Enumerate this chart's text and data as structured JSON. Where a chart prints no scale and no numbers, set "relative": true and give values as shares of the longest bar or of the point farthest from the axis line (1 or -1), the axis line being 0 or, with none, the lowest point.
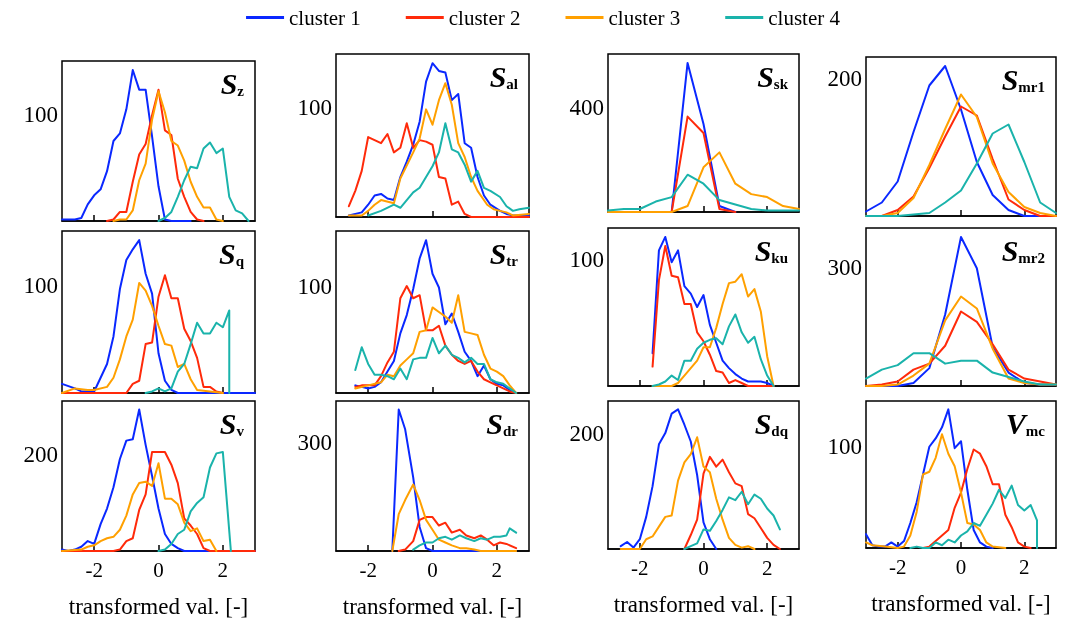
{
  "chart_data": [
    {
      "type": "line",
      "title": "S$_{z}$",
      "relative": true,
      "legend": "top",
      "xlim": [
        -3,
        3
      ],
      "xticks": [
        -2,
        0,
        2
      ],
      "tick_labels": "y",
      "annotations": [
        "100"
      ],
      "series": [
        {
          "name": "cluster 1",
          "color": "#0a28ff",
          "x": [
            -3,
            -2.8,
            -2.6,
            -2.4,
            -2.2,
            -2,
            -1.8,
            -1.6,
            -1.4,
            -1.2,
            -1,
            -0.8,
            -0.6,
            -0.4,
            -0.2,
            0,
            0.2,
            0.4,
            1
          ],
          "values": [
            0.01,
            0.01,
            0.01,
            0.02,
            0.11,
            0.17,
            0.21,
            0.33,
            0.53,
            0.58,
            0.74,
            1,
            0.87,
            0.87,
            0.56,
            0.23,
            0.01,
            0,
            0
          ]
        },
        {
          "name": "cluster 2",
          "color": "#ff2a0a",
          "x": [
            -1.6,
            -1.4,
            -1.2,
            -1,
            -0.8,
            -0.6,
            -0.4,
            -0.2,
            0,
            0.2,
            0.4,
            0.6,
            0.8,
            1,
            1.2,
            1.4
          ],
          "values": [
            0,
            0.01,
            0.06,
            0.06,
            0.26,
            0.44,
            0.51,
            0.7,
            0.87,
            0.6,
            0.57,
            0.28,
            0.16,
            0.06,
            0.01,
            0
          ]
        },
        {
          "name": "cluster 3",
          "color": "#ffa000",
          "x": [
            -1.4,
            -1.2,
            -1,
            -0.8,
            -0.6,
            -0.4,
            -0.2,
            0,
            0.2,
            0.4,
            0.6,
            0.8,
            1,
            1.2,
            1.4,
            1.6,
            1.8,
            2
          ],
          "values": [
            0,
            0.01,
            0.01,
            0.07,
            0.27,
            0.38,
            0.67,
            0.86,
            0.72,
            0.53,
            0.5,
            0.4,
            0.26,
            0.16,
            0.09,
            0.09,
            0.01,
            0
          ]
        },
        {
          "name": "cluster 4",
          "color": "#1ab3ab",
          "x": [
            0,
            0.2,
            0.4,
            0.6,
            0.8,
            1,
            1.2,
            1.4,
            1.6,
            1.8,
            2,
            2.2,
            2.4,
            2.6,
            2.8
          ],
          "values": [
            0,
            0.02,
            0.06,
            0.16,
            0.27,
            0.36,
            0.35,
            0.48,
            0.52,
            0.45,
            0.48,
            0.16,
            0.07,
            0.05,
            0
          ]
        }
      ]
    },
    {
      "type": "line",
      "title": "S$_{al}$",
      "relative": true,
      "xlim": [
        -3,
        3
      ],
      "xticks": [
        -2,
        0,
        2
      ],
      "tick_labels": "y",
      "annotations": [
        "100"
      ],
      "series": [
        {
          "color": "#0a28ff",
          "x": [
            -2.6,
            -2.2,
            -2,
            -1.8,
            -1.6,
            -1.4,
            -1.2,
            -1,
            -0.8,
            -0.6,
            -0.4,
            -0.2,
            0,
            0.2,
            0.4,
            0.6,
            0.8,
            1,
            1.2,
            1.4,
            1.6,
            1.8,
            2.1,
            2.3,
            2.5,
            3
          ],
          "values": [
            0.01,
            0.03,
            0.08,
            0.14,
            0.15,
            0.12,
            0.11,
            0.26,
            0.36,
            0.47,
            0.62,
            0.88,
            1,
            0.95,
            0.94,
            0.76,
            0.8,
            0.48,
            0.45,
            0.26,
            0.14,
            0.08,
            0.04,
            0.02,
            0.01,
            0.01
          ]
        },
        {
          "color": "#ff2a0a",
          "x": [
            -2.6,
            -2.4,
            -2.2,
            -2,
            -1.8,
            -1.6,
            -1.4,
            -1.2,
            -1,
            -0.8,
            -0.6,
            -0.4,
            -0.2,
            0,
            0.2,
            0.4,
            0.6,
            0.8,
            1,
            1.2,
            3
          ],
          "values": [
            0.07,
            0.17,
            0.3,
            0.52,
            0.5,
            0.48,
            0.54,
            0.42,
            0.45,
            0.61,
            0.45,
            0.5,
            0.49,
            0.47,
            0.26,
            0.25,
            0.08,
            0.1,
            0.02,
            0,
            0
          ]
        },
        {
          "color": "#ffa000",
          "x": [
            -2.6,
            -2.2,
            -2,
            -1.8,
            -1.6,
            -1.2,
            -1,
            -0.6,
            -0.4,
            -0.2,
            0,
            0.2,
            0.4,
            0.6,
            0.8,
            1,
            1.2,
            1.4,
            1.7,
            1.9,
            2.1,
            2.3,
            2.5,
            3
          ],
          "values": [
            0.01,
            0.01,
            0.04,
            0.08,
            0.11,
            0.09,
            0.25,
            0.42,
            0.51,
            0.7,
            0.6,
            0.76,
            0.87,
            0.73,
            0.48,
            0.39,
            0.26,
            0.17,
            0.08,
            0.05,
            0.04,
            0.03,
            0.01,
            0.02
          ]
        },
        {
          "color": "#1ab3ab",
          "x": [
            -2,
            -1.6,
            -1.2,
            -1,
            -0.8,
            -0.6,
            -0.4,
            -0.2,
            0,
            0.2,
            0.4,
            0.6,
            0.8,
            1,
            1.2,
            1.4,
            1.6,
            1.8,
            2.1,
            2.3,
            2.5,
            2.7,
            3
          ],
          "values": [
            0.01,
            0.04,
            0.08,
            0.06,
            0.11,
            0.16,
            0.19,
            0.26,
            0.33,
            0.42,
            0.61,
            0.44,
            0.42,
            0.34,
            0.23,
            0.3,
            0.19,
            0.17,
            0.13,
            0.07,
            0.04,
            0.05,
            0.06
          ]
        }
      ]
    },
    {
      "type": "line",
      "title": "S$_{sk}$",
      "relative": true,
      "xlim": [
        -3,
        3
      ],
      "xticks": [
        -2,
        0,
        2
      ],
      "tick_labels": "y",
      "annotations": [
        "400"
      ],
      "series": [
        {
          "color": "#0a28ff",
          "x": [
            -1,
            -0.5,
            0,
            0.5,
            1
          ],
          "values": [
            0,
            1,
            0.59,
            0.04,
            0
          ]
        },
        {
          "color": "#ff2a0a",
          "x": [
            -1,
            -0.5,
            0,
            0.5,
            1
          ],
          "values": [
            0,
            0.64,
            0.53,
            0.02,
            0
          ]
        },
        {
          "color": "#ffa000",
          "x": [
            -3,
            -2.5,
            -2,
            -1.5,
            -1,
            -0.5,
            0,
            0.5,
            1,
            1.5,
            2,
            2.5,
            3
          ],
          "values": [
            0,
            0,
            0,
            0,
            0,
            0.04,
            0.3,
            0.4,
            0.19,
            0.12,
            0.1,
            0.04,
            0.02
          ]
        },
        {
          "color": "#1ab3ab",
          "x": [
            -3,
            -2.5,
            -2,
            -1.5,
            -1,
            -0.5,
            0,
            0.5,
            1,
            1.5,
            2,
            2.5,
            3
          ],
          "values": [
            0.01,
            0.02,
            0.02,
            0.07,
            0.1,
            0.25,
            0.19,
            0.08,
            0.05,
            0.02,
            0.01,
            0.01,
            0.01
          ]
        }
      ]
    },
    {
      "type": "line",
      "title": "S$_{mr1}$",
      "relative": true,
      "xlim": [
        -3,
        3
      ],
      "xticks": [
        -2,
        0,
        2
      ],
      "tick_labels": "y",
      "annotations": [
        "200"
      ],
      "series": [
        {
          "color": "#0a28ff",
          "x": [
            -3,
            -2.5,
            -2,
            -1.5,
            -1,
            -0.5,
            0,
            0.5,
            1,
            1.5,
            2,
            2.5,
            3
          ],
          "values": [
            0.03,
            0.09,
            0.23,
            0.56,
            0.87,
            1,
            0.71,
            0.36,
            0.14,
            0.04,
            0,
            0,
            0
          ]
        },
        {
          "color": "#ff2a0a",
          "x": [
            -3,
            -2.5,
            -2,
            -1.5,
            -1,
            -0.5,
            0,
            0.5,
            1,
            1.5,
            2,
            2.5,
            3
          ],
          "values": [
            0,
            0,
            0.04,
            0.13,
            0.32,
            0.53,
            0.73,
            0.67,
            0.38,
            0.11,
            0.04,
            0,
            0
          ]
        },
        {
          "color": "#ffa000",
          "x": [
            -3,
            -2.5,
            -2,
            -1.5,
            -1,
            -0.5,
            0,
            0.5,
            1,
            1.5,
            2,
            2.5,
            3
          ],
          "values": [
            0,
            0,
            0.02,
            0.12,
            0.34,
            0.58,
            0.81,
            0.66,
            0.35,
            0.16,
            0.06,
            0.02,
            0
          ]
        },
        {
          "color": "#1ab3ab",
          "x": [
            -3,
            -2.5,
            -2,
            -1.5,
            -1,
            -0.5,
            0,
            0.5,
            1,
            1.5,
            2,
            2.5,
            3
          ],
          "values": [
            0,
            0,
            0,
            0.01,
            0.02,
            0.09,
            0.17,
            0.35,
            0.55,
            0.61,
            0.36,
            0.09,
            0.02
          ]
        }
      ]
    },
    {
      "type": "line",
      "title": "S$_{q}$",
      "relative": true,
      "xlim": [
        -3,
        3
      ],
      "xticks": [
        -2,
        0,
        2
      ],
      "tick_labels": "y",
      "annotations": [
        "100"
      ],
      "series": [
        {
          "color": "#0a28ff",
          "x": [
            -3,
            -2.6,
            -2.4,
            -2,
            -1.8,
            -1.6,
            -1.4,
            -1.2,
            -1,
            -0.8,
            -0.6,
            -0.4,
            -0.2,
            0,
            0.2,
            0.4,
            0.6,
            3
          ],
          "values": [
            0.06,
            0.03,
            0.01,
            0.01,
            0.1,
            0.19,
            0.37,
            0.68,
            0.87,
            0.94,
            1,
            0.78,
            0.65,
            0.26,
            0.08,
            0.02,
            0,
            0
          ]
        },
        {
          "color": "#ff2a0a",
          "x": [
            -3,
            -1,
            -0.8,
            -0.6,
            -0.4,
            -0.2,
            0,
            0.2,
            0.4,
            0.6,
            0.8,
            1,
            1.2,
            1.4,
            1.6,
            1.8,
            2
          ],
          "values": [
            0,
            0,
            0.06,
            0.08,
            0.32,
            0.33,
            0.63,
            0.77,
            0.62,
            0.62,
            0.42,
            0.34,
            0.23,
            0.04,
            0.04,
            0.01,
            0
          ]
        },
        {
          "color": "#ffa000",
          "x": [
            -3,
            -2.6,
            -2.2,
            -2,
            -1.6,
            -1.4,
            -1.2,
            -1,
            -0.8,
            -0.6,
            -0.4,
            -0.2,
            0,
            0.2,
            0.4,
            0.6,
            0.8,
            1,
            1.2,
            1.6,
            2
          ],
          "values": [
            0,
            0.03,
            0.02,
            0.02,
            0.04,
            0.1,
            0.22,
            0.37,
            0.48,
            0.72,
            0.67,
            0.57,
            0.44,
            0.32,
            0.31,
            0.17,
            0.19,
            0.09,
            0.02,
            0.01,
            0
          ]
        },
        {
          "color": "#1ab3ab",
          "x": [
            -0.4,
            -0.2,
            0,
            0.2,
            0.4,
            0.6,
            0.8,
            1,
            1.2,
            1.4,
            1.6,
            1.8,
            2,
            2.2,
            2.2
          ],
          "values": [
            0,
            0.01,
            0.03,
            0.01,
            0.03,
            0.14,
            0.19,
            0.32,
            0.46,
            0.39,
            0.39,
            0.46,
            0.43,
            0.54,
            0
          ]
        }
      ]
    },
    {
      "type": "line",
      "title": "S$_{tr}$",
      "relative": true,
      "xlim": [
        -3,
        3
      ],
      "xticks": [
        -2,
        0,
        2
      ],
      "tick_labels": "y",
      "annotations": [
        "100"
      ],
      "series": [
        {
          "color": "#0a28ff",
          "x": [
            -2.4,
            -2.2,
            -2,
            -1.8,
            -1.6,
            -1.4,
            -1.2,
            -1,
            -0.8,
            -0.6,
            -0.4,
            -0.2,
            0,
            0.2,
            0.4,
            0.6,
            0.8,
            1,
            1.2,
            1.4,
            1.6,
            1.8,
            2,
            2.2,
            2.4,
            2.6
          ],
          "values": [
            0.05,
            0.04,
            0.03,
            0.04,
            0.07,
            0.14,
            0.21,
            0.39,
            0.51,
            0.68,
            0.88,
            1,
            0.78,
            0.69,
            0.45,
            0.52,
            0.4,
            0.27,
            0.21,
            0.11,
            0.18,
            0.09,
            0.06,
            0.05,
            0.02,
            0
          ]
        },
        {
          "color": "#ff2a0a",
          "x": [
            -2.4,
            -2.2,
            -2,
            -1.8,
            -1.6,
            -1.4,
            -1.2,
            -1,
            -0.8,
            -0.6,
            -0.4,
            -0.2,
            0,
            0.2,
            0.4,
            0.6,
            0.8,
            1,
            1.2,
            1.4,
            1.6,
            1.8,
            2,
            2.2,
            2.4,
            2.6
          ],
          "values": [
            0.04,
            0.05,
            0.05,
            0.05,
            0.11,
            0.2,
            0.27,
            0.62,
            0.7,
            0.62,
            0.64,
            0.41,
            0.41,
            0.44,
            0.31,
            0.25,
            0.21,
            0.19,
            0.21,
            0.14,
            0.09,
            0.07,
            0.05,
            0.03,
            0.01,
            0
          ]
        },
        {
          "color": "#ffa000",
          "x": [
            -2.4,
            -2,
            -1.6,
            -1.4,
            -1.2,
            -1,
            -0.8,
            -0.6,
            -0.4,
            -0.2,
            0,
            0.2,
            0.4,
            0.6,
            0.8,
            1,
            1.2,
            1.4,
            1.6,
            1.8,
            2,
            2.2,
            2.4,
            2.6
          ],
          "values": [
            0.03,
            0.05,
            0.07,
            0.12,
            0.11,
            0.18,
            0.22,
            0.26,
            0.4,
            0.41,
            0.56,
            0.53,
            0.5,
            0.46,
            0.64,
            0.4,
            0.39,
            0.38,
            0.25,
            0.16,
            0.14,
            0.11,
            0.05,
            0
          ]
        },
        {
          "color": "#1ab3ab",
          "x": [
            -2.4,
            -2.2,
            -2,
            -1.8,
            -1.6,
            -1.4,
            -1.2,
            -1,
            -0.8,
            -0.6,
            -0.4,
            -0.2,
            0,
            0.2,
            0.4,
            0.6,
            0.8,
            1,
            1.2,
            1.4,
            1.6,
            1.8,
            2,
            2.2,
            2.4,
            2.6
          ],
          "values": [
            0.15,
            0.3,
            0.19,
            0.12,
            0.12,
            0.11,
            0.09,
            0.16,
            0.09,
            0.22,
            0.23,
            0.23,
            0.36,
            0.26,
            0.31,
            0.25,
            0.23,
            0.2,
            0.23,
            0.19,
            0.19,
            0.09,
            0.07,
            0.06,
            0.03,
            0
          ]
        }
      ]
    },
    {
      "type": "line",
      "title": "S$_{ku}$",
      "relative": true,
      "xlim": [
        -3,
        3
      ],
      "xticks": [
        -2,
        0,
        2
      ],
      "tick_labels": "y",
      "annotations": [
        "100"
      ],
      "series": [
        {
          "color": "#0a28ff",
          "x": [
            -1.6,
            -1.4,
            -1.2,
            -1,
            -0.8,
            -0.6,
            -0.4,
            -0.2,
            0,
            0.2,
            0.4,
            0.6,
            0.8,
            1,
            1.2,
            1.4,
            1.6,
            1.8,
            2,
            2.2
          ],
          "values": [
            0.22,
            0.91,
            1,
            0.83,
            0.91,
            0.67,
            0.62,
            0.53,
            0.61,
            0.41,
            0.29,
            0.17,
            0.12,
            0.08,
            0.05,
            0.03,
            0.03,
            0.03,
            0.02,
            0
          ]
        },
        {
          "color": "#ff2a0a",
          "x": [
            -1.6,
            -1.4,
            -1.2,
            -1,
            -0.8,
            -0.6,
            -0.4,
            -0.2,
            0,
            0.2,
            0.4,
            0.6,
            0.8,
            1,
            1.2,
            1.4,
            1.6,
            1.8,
            2,
            2.2
          ],
          "values": [
            0.13,
            0.71,
            0.94,
            0.74,
            0.73,
            0.55,
            0.55,
            0.36,
            0.3,
            0.21,
            0.1,
            0.09,
            0.02,
            0.04,
            0.02,
            0,
            0,
            0,
            0,
            0
          ]
        },
        {
          "color": "#ffa000",
          "x": [
            -1.6,
            -1.4,
            -1.2,
            -1,
            -0.8,
            -0.6,
            -0.4,
            -0.2,
            0,
            0.2,
            0.4,
            0.6,
            0.8,
            1,
            1.2,
            1.4,
            1.6,
            1.8,
            2,
            2.2
          ],
          "values": [
            0,
            0,
            0,
            0,
            0.02,
            0.07,
            0.12,
            0.17,
            0.26,
            0.26,
            0.39,
            0.55,
            0.69,
            0.7,
            0.75,
            0.6,
            0.65,
            0.5,
            0.2,
            0
          ]
        },
        {
          "color": "#1ab3ab",
          "x": [
            -1.6,
            -1.4,
            -1.2,
            -1,
            -0.8,
            -0.6,
            -0.4,
            -0.2,
            0,
            0.2,
            0.4,
            0.6,
            0.8,
            1,
            1.2,
            1.4,
            1.6,
            1.8,
            2,
            2.2
          ],
          "values": [
            0,
            0.01,
            0.03,
            0.07,
            0.04,
            0.17,
            0.17,
            0.25,
            0.29,
            0.31,
            0.32,
            0.28,
            0.4,
            0.48,
            0.36,
            0.29,
            0.33,
            0.18,
            0.07,
            0
          ]
        }
      ]
    },
    {
      "type": "line",
      "title": "S$_{mr2}$",
      "relative": true,
      "xlim": [
        -3,
        3
      ],
      "xticks": [
        -2,
        0,
        2
      ],
      "tick_labels": "y",
      "annotations": [
        "300"
      ],
      "series": [
        {
          "color": "#0a28ff",
          "x": [
            -3,
            -2.5,
            -2,
            -1.5,
            -1,
            -0.5,
            0,
            0.5,
            1,
            1.5,
            2,
            2.5,
            3
          ],
          "values": [
            0,
            0,
            0,
            0.02,
            0.12,
            0.48,
            1,
            0.79,
            0.26,
            0.09,
            0.02,
            0.01,
            0.01
          ]
        },
        {
          "color": "#ff2a0a",
          "x": [
            -3,
            -2.5,
            -2,
            -1.5,
            -1,
            -0.5,
            0,
            0.5,
            1,
            1.5,
            2,
            2.5,
            3
          ],
          "values": [
            0,
            0.01,
            0.03,
            0.11,
            0.15,
            0.27,
            0.5,
            0.43,
            0.28,
            0.11,
            0.05,
            0.03,
            0.01
          ]
        },
        {
          "color": "#ffa000",
          "x": [
            -3,
            -2.5,
            -2,
            -1.5,
            -1,
            -0.5,
            0,
            0.5,
            1,
            1.5,
            2,
            2.5,
            3
          ],
          "values": [
            0,
            0,
            0.01,
            0.07,
            0.15,
            0.44,
            0.6,
            0.52,
            0.25,
            0.05,
            0.02,
            0.01,
            0.01
          ]
        },
        {
          "color": "#1ab3ab",
          "x": [
            -3,
            -2.5,
            -2,
            -1.5,
            -1,
            -0.5,
            0,
            0.5,
            1,
            1.5,
            2,
            2.5,
            3
          ],
          "values": [
            0.05,
            0.11,
            0.14,
            0.22,
            0.22,
            0.15,
            0.17,
            0.17,
            0.09,
            0.06,
            0.03,
            0.01,
            0.01
          ]
        }
      ]
    },
    {
      "type": "line",
      "title": "S$_{v}$",
      "relative": true,
      "xlabel": "transformed val. [-]",
      "xlim": [
        -3,
        3
      ],
      "xticks": [
        -2,
        0,
        2
      ],
      "annotations": [
        "200"
      ],
      "series": [
        {
          "color": "#0a28ff",
          "x": [
            -3,
            -2.8,
            -2.6,
            -2.4,
            -2.2,
            -2,
            -1.8,
            -1.6,
            -1.4,
            -1.2,
            -1,
            -0.8,
            -0.6,
            -0.4,
            -0.2,
            0,
            0.2,
            0.4,
            0.6,
            0.8,
            3
          ],
          "values": [
            0.01,
            0,
            0.01,
            0.03,
            0.07,
            0.05,
            0.19,
            0.3,
            0.45,
            0.65,
            0.78,
            0.79,
            1,
            0.75,
            0.53,
            0.3,
            0.12,
            0.05,
            0.02,
            0,
            0
          ]
        },
        {
          "color": "#ff2a0a",
          "x": [
            -3,
            -1.4,
            -1.2,
            -1,
            -0.8,
            -0.6,
            -0.4,
            -0.2,
            0,
            0.2,
            0.4,
            0.6,
            0.8,
            1,
            1.2,
            1.4,
            1.6,
            3
          ],
          "values": [
            0,
            0,
            0.01,
            0.07,
            0.09,
            0.29,
            0.4,
            0.7,
            0.7,
            0.7,
            0.61,
            0.48,
            0.23,
            0.18,
            0.12,
            0.02,
            0,
            0
          ]
        },
        {
          "color": "#ffa000",
          "x": [
            -3,
            -2.4,
            -2.2,
            -2,
            -1.8,
            -1.6,
            -1.4,
            -1.2,
            -1,
            -0.8,
            -0.6,
            -0.4,
            -0.2,
            0,
            0.2,
            0.4,
            0.6,
            0.8,
            1,
            1.2,
            1.4,
            1.6,
            1.8
          ],
          "values": [
            0,
            0.01,
            0.03,
            0.04,
            0.07,
            0.09,
            0.1,
            0.15,
            0.25,
            0.4,
            0.48,
            0.49,
            0.46,
            0.62,
            0.37,
            0.37,
            0.33,
            0.2,
            0.14,
            0.16,
            0.07,
            0.08,
            0
          ]
        },
        {
          "color": "#1ab3ab",
          "x": [
            0,
            0.2,
            0.4,
            0.6,
            0.8,
            1,
            1.2,
            1.4,
            1.6,
            1.8,
            2,
            2.25
          ],
          "values": [
            0,
            0.01,
            0.05,
            0.12,
            0.15,
            0.28,
            0.34,
            0.38,
            0.59,
            0.69,
            0.7,
            0
          ]
        }
      ]
    },
    {
      "type": "line",
      "title": "S$_{dr}$",
      "relative": true,
      "xlabel": "transformed val. [-]",
      "xlim": [
        -3,
        3
      ],
      "xticks": [
        -2,
        0,
        2
      ],
      "annotations": [
        "300"
      ],
      "series": [
        {
          "color": "#0a28ff",
          "x": [
            -1.25,
            -1.05,
            -0.85,
            -0.6,
            -0.4,
            -0.2,
            0,
            2.6
          ],
          "values": [
            0,
            1,
            0.86,
            0.52,
            0.17,
            0.02,
            0,
            0
          ]
        },
        {
          "color": "#ff2a0a",
          "x": [
            -1.05,
            -0.85,
            -0.6,
            -0.4,
            -0.2,
            0,
            0.2,
            0.4,
            0.6,
            0.85,
            1.05,
            1.3,
            1.5,
            1.7,
            1.9,
            2.1,
            2.3,
            2.6
          ],
          "values": [
            0,
            0.01,
            0.07,
            0.22,
            0.24,
            0.24,
            0.18,
            0.2,
            0.13,
            0.15,
            0.11,
            0.09,
            0.11,
            0.08,
            0.04,
            0.06,
            0.05,
            0.02
          ]
        },
        {
          "color": "#ffa000",
          "x": [
            -1.25,
            -1.05,
            -0.85,
            -0.6,
            -0.4,
            -0.2,
            0,
            0.2,
            0.4,
            0.6,
            0.85,
            1.05,
            1.3,
            1.5,
            2.6
          ],
          "values": [
            0,
            0.26,
            0.36,
            0.47,
            0.36,
            0.22,
            0.15,
            0.08,
            0.06,
            0.04,
            0.02,
            0.02,
            0.01,
            0,
            0
          ]
        },
        {
          "color": "#1ab3ab",
          "x": [
            -0.6,
            -0.4,
            -0.2,
            0,
            0.2,
            0.4,
            0.6,
            0.85,
            1.05,
            1.3,
            1.5,
            1.7,
            1.9,
            2.1,
            2.3,
            2.4,
            2.6
          ],
          "values": [
            0.01,
            0.04,
            0.06,
            0.06,
            0.09,
            0.1,
            0.08,
            0.11,
            0.09,
            0.07,
            0.09,
            0.08,
            0.1,
            0.1,
            0.11,
            0.16,
            0.13
          ]
        }
      ]
    },
    {
      "type": "line",
      "title": "S$_{dq}$",
      "relative": true,
      "xlabel": "transformed val. [-]",
      "xlim": [
        -3,
        3
      ],
      "xticks": [
        -2,
        0,
        2
      ],
      "annotations": [
        "200"
      ],
      "series": [
        {
          "color": "#0a28ff",
          "x": [
            -2.6,
            -2.4,
            -2.2,
            -2,
            -1.8,
            -1.6,
            -1.4,
            -1.2,
            -1,
            -0.8,
            -0.6,
            -0.4,
            -0.2,
            0,
            0.2,
            0.4
          ],
          "values": [
            0.02,
            0.05,
            0.01,
            0.07,
            0.23,
            0.45,
            0.75,
            0.83,
            0.97,
            1,
            0.89,
            0.77,
            0.53,
            0.19,
            0.07,
            0
          ]
        },
        {
          "color": "#ff2a0a",
          "x": [
            -0.6,
            -0.4,
            -0.2,
            0,
            0.2,
            0.4,
            0.6,
            0.8,
            1,
            1.2,
            1.4,
            1.6,
            1.8,
            2,
            2.2,
            2.4
          ],
          "values": [
            0,
            0.1,
            0.21,
            0.54,
            0.66,
            0.59,
            0.64,
            0.55,
            0.47,
            0.45,
            0.25,
            0.22,
            0.15,
            0.08,
            0.03,
            0
          ]
        },
        {
          "color": "#ffa000",
          "x": [
            -2.6,
            -2,
            -1.8,
            -1.6,
            -1.4,
            -1.2,
            -1,
            -0.8,
            -0.6,
            -0.4,
            -0.2,
            0,
            0.2,
            0.4,
            0.6,
            0.8,
            1,
            1.2,
            1.4,
            1.6
          ],
          "values": [
            0,
            0,
            0.07,
            0.09,
            0.16,
            0.23,
            0.24,
            0.49,
            0.62,
            0.68,
            0.8,
            0.59,
            0.55,
            0.36,
            0.21,
            0.08,
            0.03,
            0.01,
            0.02,
            0
          ]
        },
        {
          "color": "#1ab3ab",
          "x": [
            -0.6,
            -0.4,
            -0.2,
            0,
            0.2,
            0.4,
            0.6,
            0.8,
            1,
            1.2,
            1.4,
            1.6,
            1.8,
            2,
            2.2,
            2.4
          ],
          "values": [
            0,
            0.02,
            0.04,
            0.14,
            0.13,
            0.2,
            0.28,
            0.37,
            0.35,
            0.41,
            0.32,
            0.39,
            0.36,
            0.29,
            0.24,
            0.14
          ]
        }
      ]
    },
    {
      "type": "line",
      "title": "V$_{mc}$",
      "relative": true,
      "xlabel": "transformed val. [-]",
      "xlim": [
        -3,
        3
      ],
      "xticks": [
        -2,
        0,
        2
      ],
      "annotations": [
        "100"
      ],
      "series": [
        {
          "color": "#0a28ff",
          "x": [
            -3,
            -2.8,
            -2.6,
            -2.4,
            -2.2,
            -2,
            -1.8,
            -1.6,
            -1.4,
            -1.2,
            -1,
            -0.8,
            -0.6,
            -0.4,
            -0.2,
            0,
            0.2,
            0.4,
            0.6,
            0.8,
            1
          ],
          "values": [
            0.1,
            0.02,
            0.01,
            0.01,
            0.04,
            0.01,
            0.05,
            0.18,
            0.33,
            0.53,
            0.73,
            0.79,
            0.87,
            1,
            0.72,
            0.77,
            0.42,
            0.13,
            0.04,
            0.01,
            0
          ]
        },
        {
          "color": "#ff2a0a",
          "x": [
            -1.2,
            -1,
            -0.8,
            -0.6,
            -0.4,
            -0.2,
            0,
            0.2,
            0.4,
            0.6,
            0.8,
            1,
            1.2,
            1.4,
            1.6,
            1.8,
            2,
            2.2
          ],
          "values": [
            0,
            0.01,
            0.05,
            0.09,
            0.13,
            0.29,
            0.4,
            0.57,
            0.71,
            0.68,
            0.59,
            0.46,
            0.46,
            0.24,
            0.15,
            0.04,
            0.01,
            0
          ]
        },
        {
          "color": "#ffa000",
          "x": [
            -3,
            -2.8,
            -2.4,
            -2,
            -1.8,
            -1.6,
            -1.4,
            -1.2,
            -1,
            -0.8,
            -0.6,
            -0.4,
            -0.2,
            0,
            0.2,
            0.4,
            0.6,
            0.8,
            1,
            1.4
          ],
          "values": [
            0.04,
            0.02,
            0.01,
            0,
            0.01,
            0.09,
            0.26,
            0.53,
            0.55,
            0.65,
            0.82,
            0.68,
            0.59,
            0.4,
            0.18,
            0.17,
            0.13,
            0.04,
            0.01,
            0
          ]
        },
        {
          "color": "#1ab3ab",
          "x": [
            -1.6,
            -1.4,
            -1.2,
            -1,
            -0.8,
            -0.6,
            -0.4,
            -0.2,
            0,
            0.2,
            0.4,
            0.6,
            0.8,
            1,
            1.2,
            1.4,
            1.6,
            1.8,
            2,
            2.2,
            2.4,
            2.4
          ],
          "values": [
            0,
            0.01,
            0,
            0,
            0.04,
            0.02,
            0.06,
            0.04,
            0.09,
            0.12,
            0.18,
            0.16,
            0.24,
            0.32,
            0.42,
            0.36,
            0.45,
            0.31,
            0.27,
            0.31,
            0.2,
            0
          ]
        }
      ]
    }
  ]
}
